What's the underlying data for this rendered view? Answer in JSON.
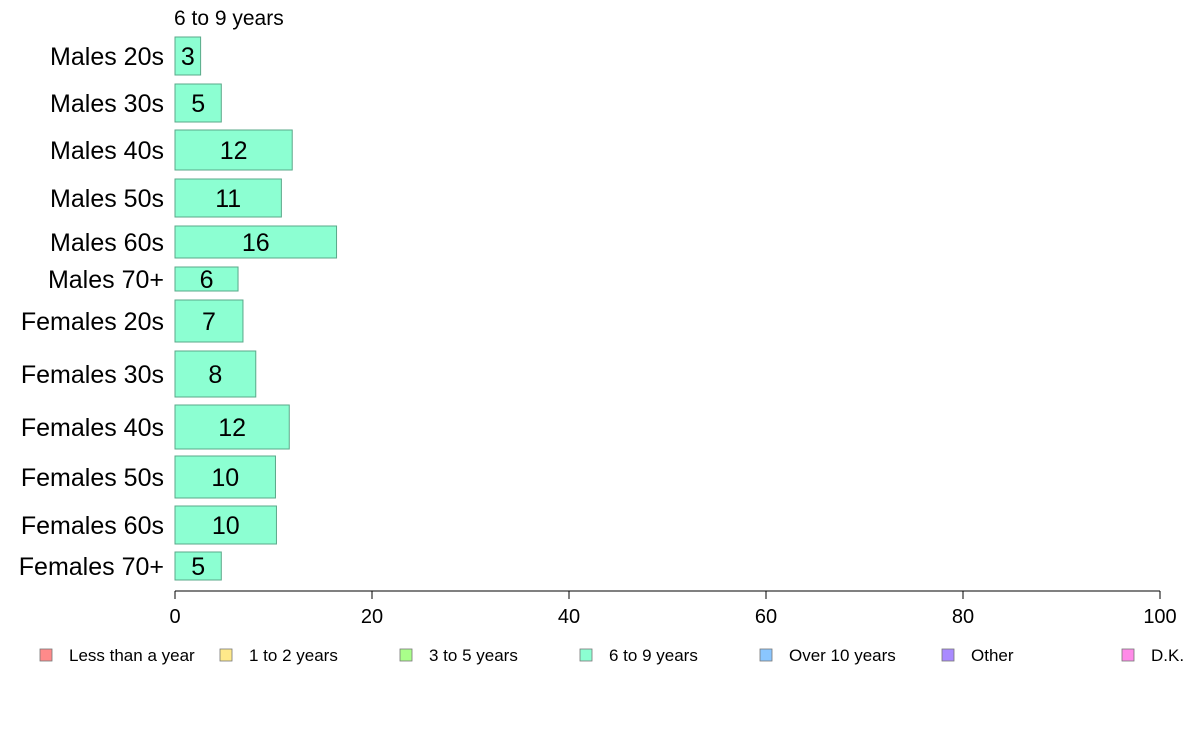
{
  "chart_data": {
    "type": "bar",
    "orientation": "horizontal",
    "stacked": true,
    "panel_title": "6 to 9 years",
    "categories": [
      "Males 20s",
      "Males 30s",
      "Males 40s",
      "Males 50s",
      "Males 60s",
      "Males 70+",
      "Females 20s",
      "Females 30s",
      "Females 40s",
      "Females 50s",
      "Females 60s",
      "Females 70+"
    ],
    "series": [
      {
        "name": "6 to 9 years",
        "color": "#8cffd2",
        "values": [
          2.6,
          4.7,
          11.9,
          10.8,
          16.4,
          6.4,
          6.9,
          8.2,
          11.6,
          10.2,
          10.3,
          4.7
        ],
        "labels": [
          "3",
          "5",
          "12",
          "11",
          "16",
          "6",
          "7",
          "8",
          "12",
          "10",
          "10",
          "5"
        ]
      }
    ],
    "xlim": [
      0,
      100
    ],
    "xticks": [
      "0",
      "20",
      "40",
      "60",
      "80",
      "100"
    ],
    "grid": false,
    "legend_position": "bottom",
    "legend": [
      {
        "label": "Less than a year",
        "color": "#ff8a8a"
      },
      {
        "label": "1 to 2 years",
        "color": "#ffe98a"
      },
      {
        "label": "3 to 5 years",
        "color": "#a9ff8a"
      },
      {
        "label": "6 to 9 years",
        "color": "#8cffd2"
      },
      {
        "label": "Over 10 years",
        "color": "#8ac6ff"
      },
      {
        "label": "Other",
        "color": "#a98aff"
      },
      {
        "label": "D.K.",
        "color": "#ff8ae8"
      }
    ]
  }
}
